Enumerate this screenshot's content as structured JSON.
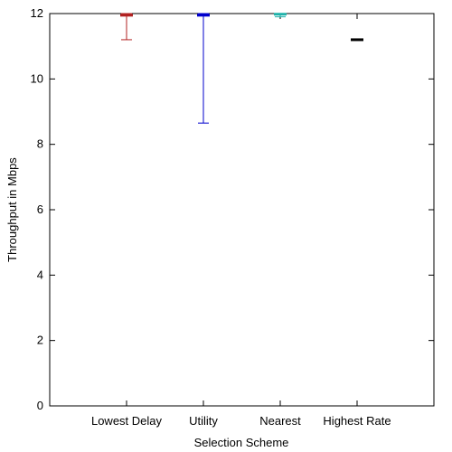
{
  "chart_data": {
    "type": "boxplot",
    "title": "",
    "xlabel": "Selection Scheme",
    "ylabel": "Throughput in Mbps",
    "ylim": [
      0,
      12
    ],
    "yticks": [
      0,
      2,
      4,
      6,
      8,
      10,
      12
    ],
    "categories": [
      "Lowest Delay",
      "Utility",
      "Nearest",
      "Highest Rate"
    ],
    "series": [
      {
        "category": "Lowest Delay",
        "min": 11.2,
        "median": 11.95,
        "max": 12.0,
        "color": "#b22222"
      },
      {
        "category": "Utility",
        "min": 8.65,
        "median": 11.95,
        "max": 12.0,
        "color": "#0000cd"
      },
      {
        "category": "Nearest",
        "min": 11.9,
        "median": 11.98,
        "max": 12.0,
        "color": "#20b2aa"
      },
      {
        "category": "Highest Rate",
        "min": 11.2,
        "median": 11.2,
        "max": 11.2,
        "color": "#000000"
      }
    ],
    "grid": false,
    "legend": "none"
  }
}
